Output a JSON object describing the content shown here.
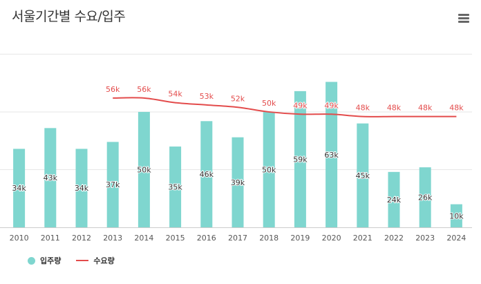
{
  "title": "서울기간별 수요/입주",
  "menu_icon": "hamburger-menu-icon",
  "colors": {
    "supply": "#7fd6cf",
    "demand": "#e34b4b",
    "grid": "#e6e6e6",
    "axis": "#cccccc",
    "label": "#555555"
  },
  "chart_data": {
    "type": "bar+line",
    "title": "서울기간별 수요/입주",
    "categories": [
      "2010",
      "2011",
      "2012",
      "2013",
      "2014",
      "2015",
      "2016",
      "2017",
      "2018",
      "2019",
      "2020",
      "2021",
      "2022",
      "2023",
      "2024"
    ],
    "ylim": [
      0,
      85000
    ],
    "grid": true,
    "legend_position": "bottom-left",
    "series": [
      {
        "name": "입주량",
        "type": "bar",
        "values": [
          34000,
          43000,
          34000,
          37000,
          50000,
          35000,
          46000,
          39000,
          50000,
          59000,
          63000,
          45000,
          24000,
          26000,
          10000
        ],
        "labels": [
          "34k",
          "43k",
          "34k",
          "37k",
          "50k",
          "35k",
          "46k",
          "39k",
          "50k",
          "59k",
          "63k",
          "45k",
          "24k",
          "26k",
          "10k"
        ]
      },
      {
        "name": "수요량",
        "type": "line",
        "values": [
          null,
          null,
          null,
          56000,
          56000,
          54000,
          53000,
          52000,
          50000,
          49000,
          49000,
          48000,
          48000,
          48000,
          48000
        ],
        "labels": [
          null,
          null,
          null,
          "56k",
          "56k",
          "54k",
          "53k",
          "52k",
          "50k",
          "49k",
          "49k",
          "48k",
          "48k",
          "48k",
          "48k"
        ]
      }
    ]
  }
}
